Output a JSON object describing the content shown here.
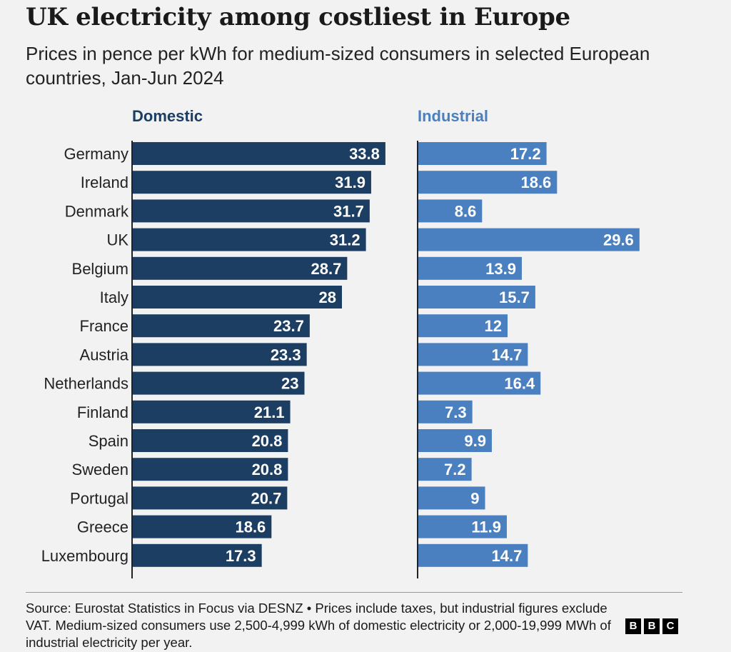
{
  "title": "UK electricity among costliest in Europe",
  "subtitle": "Prices in pence per kWh for medium-sized consumers in selected European countries, Jan-Jun 2024",
  "source": "Source: Eurostat Statistics in Focus via DESNZ • Prices include taxes, but industrial figures exclude VAT. Medium-sized consumers use 2,500-4,999 kWh of domestic electricity or 2,000-19,999 MWh of industrial electricity per year.",
  "logo_letters": [
    "B",
    "B",
    "C"
  ],
  "colors": {
    "domestic": "#1c3e63",
    "industrial": "#4a7fc0",
    "header_domestic": "#1c3e63",
    "header_industrial": "#4a7fc0"
  },
  "chart_data": {
    "type": "bar",
    "orientation": "horizontal",
    "categories": [
      "Germany",
      "Ireland",
      "Denmark",
      "UK",
      "Belgium",
      "Italy",
      "France",
      "Austria",
      "Netherlands",
      "Finland",
      "Spain",
      "Sweden",
      "Portugal",
      "Greece",
      "Luxembourg"
    ],
    "series": [
      {
        "name": "Domestic",
        "values": [
          33.8,
          31.9,
          31.7,
          31.2,
          28.7,
          28,
          23.7,
          23.3,
          23,
          21.1,
          20.8,
          20.8,
          20.7,
          18.6,
          17.3
        ]
      },
      {
        "name": "Industrial",
        "values": [
          17.2,
          18.6,
          8.6,
          29.6,
          13.9,
          15.7,
          12,
          14.7,
          16.4,
          7.3,
          9.9,
          7.2,
          9,
          11.9,
          14.7
        ]
      }
    ],
    "value_labels": {
      "Domestic": [
        "33.8",
        "31.9",
        "31.7",
        "31.2",
        "28.7",
        "28",
        "23.7",
        "23.3",
        "23",
        "21.1",
        "20.8",
        "20.8",
        "20.7",
        "18.6",
        "17.3"
      ],
      "Industrial": [
        "17.2",
        "18.6",
        "8.6",
        "29.6",
        "13.9",
        "15.7",
        "12",
        "14.7",
        "16.4",
        "7.3",
        "9.9",
        "7.2",
        "9",
        "11.9",
        "14.7"
      ]
    },
    "xlim": [
      0,
      34
    ],
    "grid": false,
    "legend": "column headers above panels"
  }
}
